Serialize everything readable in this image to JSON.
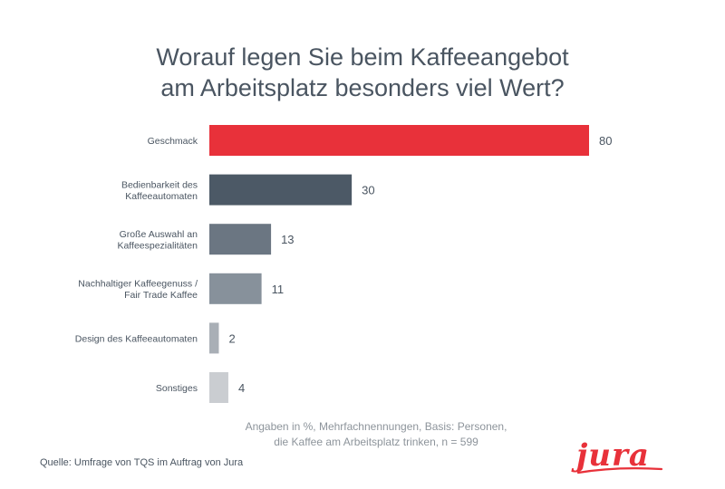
{
  "chart_data": {
    "type": "bar",
    "orientation": "horizontal",
    "title_line1": "Worauf legen Sie beim Kaffeeangebot",
    "title_line2": "am Arbeitsplatz besonders viel Wert?",
    "categories": [
      [
        "Geschmack"
      ],
      [
        "Bedienbarkeit des",
        "Kaffeeautomaten"
      ],
      [
        "Große Auswahl an",
        "Kaffeespezialitäten"
      ],
      [
        "Nachhaltiger  Kaffeegenuss /",
        "Fair Trade Kaffee"
      ],
      [
        "Design des Kaffeeautomaten"
      ],
      [
        "Sonstiges"
      ]
    ],
    "values": [
      80,
      30,
      13,
      11,
      2,
      4
    ],
    "colors": [
      "#e8313a",
      "#4c5966",
      "#6b7682",
      "#87919b",
      "#a9afb6",
      "#cacdd1"
    ],
    "xlim": [
      0,
      80
    ],
    "grid": false,
    "note_line1": "Angaben in %, Mehrfachnennungen, Basis: Personen,",
    "note_line2": "die Kaffee am Arbeitsplatz trinken, n = 599"
  },
  "footer": {
    "source": "Quelle: Umfrage von TQS im Auftrag von Jura",
    "logo_text": "jura",
    "logo_color": "#e8313a"
  }
}
